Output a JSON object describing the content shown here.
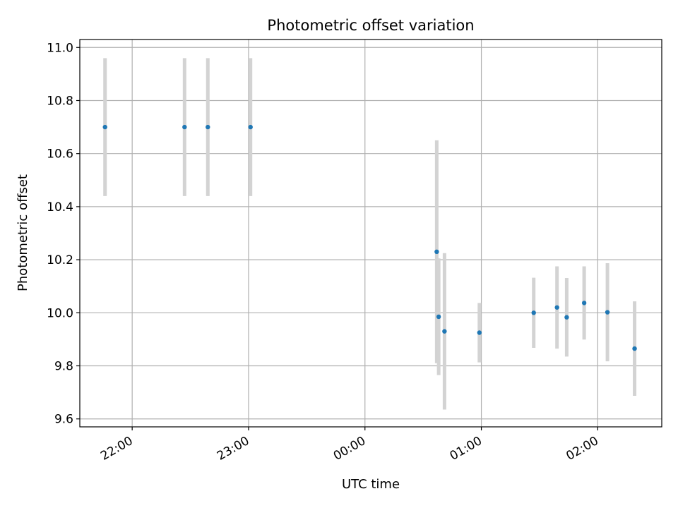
{
  "chart_data": {
    "type": "scatter",
    "title": "Photometric offset variation",
    "xlabel": "UTC time",
    "ylabel": "Photometric offset",
    "x_axis": {
      "kind": "time",
      "tick_labels": [
        "22:00",
        "23:00",
        "00:00",
        "01:00",
        "02:00"
      ],
      "tick_times": [
        "22:00",
        "23:00",
        "24:00",
        "25:00",
        "26:00"
      ],
      "range": [
        "21:33",
        "26:33"
      ],
      "tick_rotation": "30 degrees"
    },
    "y_axis": {
      "tick_labels": [
        "9.6",
        "9.8",
        "10.0",
        "10.2",
        "10.4",
        "10.6",
        "10.8",
        "11.0"
      ],
      "ticks": [
        9.6,
        9.8,
        10.0,
        10.2,
        10.4,
        10.6,
        10.8,
        11.0
      ],
      "range": [
        9.57,
        11.03
      ]
    },
    "grid": true,
    "colors": {
      "marker": "#1f77b4",
      "errorbar": "#d3d3d3",
      "grid": "#b0b0b0"
    },
    "series": [
      {
        "points": [
          {
            "t": "21:46",
            "y": 10.7,
            "err": 0.26
          },
          {
            "t": "22:27",
            "y": 10.7,
            "err": 0.26
          },
          {
            "t": "22:39",
            "y": 10.7,
            "err": 0.26
          },
          {
            "t": "23:01",
            "y": 10.7,
            "err": 0.26
          },
          {
            "t": "24:37",
            "y": 10.23,
            "err": 0.42
          },
          {
            "t": "24:38",
            "y": 9.985,
            "err": 0.22
          },
          {
            "t": "24:41",
            "y": 9.93,
            "err": 0.295
          },
          {
            "t": "24:59",
            "y": 9.925,
            "err": 0.112
          },
          {
            "t": "25:27",
            "y": 10.0,
            "err": 0.132
          },
          {
            "t": "25:39",
            "y": 10.02,
            "err": 0.155
          },
          {
            "t": "25:44",
            "y": 9.983,
            "err": 0.148
          },
          {
            "t": "25:53",
            "y": 10.037,
            "err": 0.138
          },
          {
            "t": "26:05",
            "y": 10.002,
            "err": 0.185
          },
          {
            "t": "26:19",
            "y": 9.865,
            "err": 0.178
          }
        ]
      }
    ]
  }
}
